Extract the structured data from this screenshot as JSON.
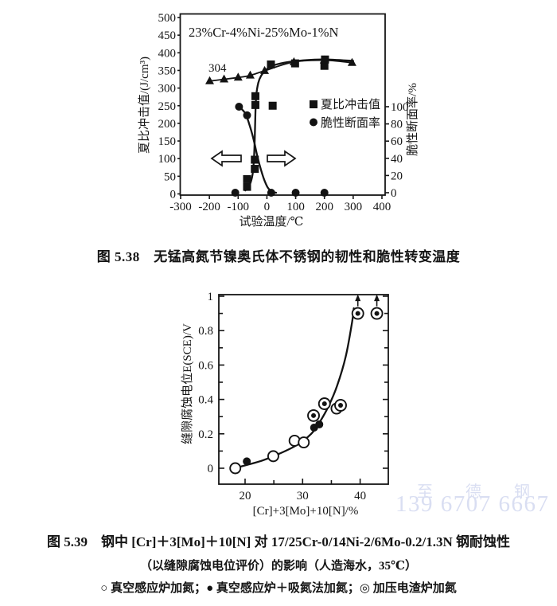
{
  "watermark": {
    "company": "至 德 钢 业",
    "phone": "139 6707 6667",
    "color": "#d9def2"
  },
  "figure38": {
    "caption": "图 5.38　无锰高氮节镍奥氏体不锈钢的韧性和脆性转变温度",
    "title_annotation": "23%Cr-4%Ni-25%Mo-1%N",
    "label_304": "304",
    "xlabel": "试验温度/℃",
    "ylabel_left": "夏比冲击值/(J/cm³)",
    "ylabel_right": "脆性断面率/%",
    "legend": {
      "impact": "夏比冲击值",
      "brittle": "脆性断面率"
    }
  },
  "figure39": {
    "caption_line1": "图 5.39　钢中 [Cr]＋3[Mo]＋10[N] 对 17/25Cr-0/14Ni-2/6Mo-0.2/1.3N 钢耐蚀性",
    "caption_line2": "（以缝隙腐蚀电位评价）的影响（人造海水，35℃）",
    "caption_line3": "○ 真空感应炉加氮；● 真空感应炉＋吸氮法加氮；◎ 加压电渣炉加氮",
    "xlabel": "[Cr]+3[Mo]+10[N]/%",
    "ylabel": "缝隙腐蚀电位E(SCE)/V"
  },
  "chart_data": [
    {
      "type": "scatter",
      "title": "无锰高氮节镍奥氏体不锈钢的韧性和脆性转变温度",
      "annotation": "23%Cr-4%Ni-25%Mo-1%N",
      "xlabel": "试验温度/℃",
      "ylabel_left": "夏比冲击值/(J/cm³)",
      "ylabel_right": "脆性断面率/%",
      "xlim": [
        -300,
        400
      ],
      "ylim_left": [
        0,
        500
      ],
      "ylim_right": [
        0,
        100
      ],
      "grid": false,
      "legend_position": "middle-right",
      "xticks": [
        -300,
        -200,
        -100,
        0,
        100,
        200,
        300,
        400
      ],
      "yticks_left": [
        0,
        50,
        100,
        150,
        200,
        250,
        300,
        350,
        400,
        450,
        500
      ],
      "yticks_right": [
        0,
        20,
        40,
        60,
        80,
        100
      ],
      "series": [
        {
          "name": "304 夏比冲击值",
          "axis": "left",
          "marker": "filled-triangle",
          "line_through_points": true,
          "points": [
            [
              -199,
              320
            ],
            [
              -149,
              325
            ],
            [
              -100,
              330
            ],
            [
              -58,
              336
            ],
            [
              -8,
              349
            ],
            [
              94,
              374
            ],
            [
              199,
              379
            ],
            [
              296,
              372
            ]
          ]
        },
        {
          "name": "23%Cr-4%Ni-25%Mo-1%N 夏比冲击值",
          "axis": "left",
          "marker": "filled-square",
          "points": [
            [
              -69,
              20
            ],
            [
              -69,
              42
            ],
            [
              -42,
              71
            ],
            [
              -42,
              97
            ],
            [
              -40,
              252
            ],
            [
              -40,
              277
            ],
            [
              20,
              250
            ],
            [
              14,
              367
            ],
            [
              98,
              370
            ],
            [
              200,
              363
            ],
            [
              202,
              381
            ]
          ],
          "curve": [
            [
              -75,
              10
            ],
            [
              -60,
              25
            ],
            [
              -50,
              55
            ],
            [
              -45,
              100
            ],
            [
              -42,
              160
            ],
            [
              -40,
              230
            ],
            [
              -37,
              280
            ],
            [
              -30,
              315
            ],
            [
              -20,
              335
            ],
            [
              -5,
              350
            ],
            [
              15,
              362
            ],
            [
              60,
              372
            ],
            [
              120,
              378
            ],
            [
              200,
              381
            ],
            [
              300,
              377
            ]
          ]
        },
        {
          "name": "23%Cr-4%Ni-25%Mo-1%N 脆性断面率",
          "axis": "right",
          "marker": "filled-circle",
          "points": [
            [
              -110,
              0
            ],
            [
              -97,
              100
            ],
            [
              -69,
              90
            ],
            [
              15,
              0
            ],
            [
              100,
              0
            ],
            [
              200,
              0
            ]
          ],
          "curve": [
            [
              -97,
              100
            ],
            [
              -75,
              92
            ],
            [
              -58,
              76
            ],
            [
              -45,
              60
            ],
            [
              -33,
              42
            ],
            [
              -20,
              26
            ],
            [
              -8,
              14
            ],
            [
              5,
              5
            ],
            [
              20,
              1
            ],
            [
              32,
              0
            ]
          ]
        }
      ]
    },
    {
      "type": "scatter",
      "xlabel": "[Cr]+3[Mo]+10[N]/%",
      "ylabel": "缝隙腐蚀电位E(SCE)/V",
      "xlim": [
        15.5,
        45
      ],
      "ylim": [
        -0.09,
        1
      ],
      "grid": false,
      "xticks": [
        20,
        30,
        40
      ],
      "xticks_minor": [
        25,
        35
      ],
      "yticks": [
        0,
        0.2,
        0.4,
        0.6,
        0.8,
        1
      ],
      "yticks_minor": [
        0.1,
        0.3,
        0.5,
        0.7,
        0.9
      ],
      "curve": [
        [
          19.3,
          0.01
        ],
        [
          23,
          0.045
        ],
        [
          26,
          0.085
        ],
        [
          29,
          0.135
        ],
        [
          31.5,
          0.2
        ],
        [
          33,
          0.27
        ],
        [
          34.5,
          0.36
        ],
        [
          36,
          0.48
        ],
        [
          37.5,
          0.65
        ],
        [
          38.6,
          0.85
        ],
        [
          38.9,
          0.93
        ]
      ],
      "series": [
        {
          "name": "真空感应炉加氮",
          "marker": "open-circle",
          "points": [
            [
              18.3,
              0.0
            ],
            [
              24.9,
              0.07
            ],
            [
              28.6,
              0.16
            ],
            [
              30.2,
              0.15
            ],
            [
              35.9,
              0.347
            ]
          ]
        },
        {
          "name": "真空感应炉＋吸氮法加氮",
          "marker": "filled-circle",
          "points": [
            [
              20.3,
              0.04
            ],
            [
              32.0,
              0.236
            ],
            [
              32.9,
              0.255
            ]
          ]
        },
        {
          "name": "加压电渣炉加氮",
          "marker": "double-circle",
          "points": [
            [
              31.9,
              0.306
            ],
            [
              33.8,
              0.375
            ],
            [
              36.6,
              0.366
            ],
            [
              39.6,
              0.9
            ],
            [
              42.9,
              0.9
            ]
          ],
          "offscale_arrows": [
            [
              39.6,
              0.9
            ],
            [
              42.9,
              0.9
            ]
          ]
        }
      ]
    }
  ],
  "render": {
    "marker_sizes": {
      "square": 10,
      "circle_r": 5,
      "open_r": 6.5,
      "double_outer": 7,
      "double_inner": 3
    },
    "charts": [
      {
        "layer": "c1g",
        "data": 0,
        "x": {
          "v0": -300,
          "p0": 227,
          "v1": 400,
          "p1": 480
        },
        "yL": {
          "v0": 0,
          "p0": 243.5,
          "v1": 500,
          "p1": 22
        },
        "yR": {
          "v0": 0,
          "p0": 242,
          "v1": 100,
          "p1": 134
        },
        "tickSets": [
          {
            "type": "x",
            "scale": "x",
            "vals": "xticks",
            "pos": 245,
            "len": 5,
            "labelPos": 264
          },
          {
            "type": "y",
            "scale": "yL",
            "vals": "yticks_left",
            "pos": 227,
            "len": -4,
            "labelPos": 221,
            "anchor": "end"
          },
          {
            "type": "y",
            "scale": "yR",
            "vals": "yticks_right",
            "pos": 484,
            "len": 5,
            "labelPos": 491,
            "anchor": "start"
          }
        ]
      },
      {
        "layer": "c2g",
        "data": 1,
        "x": {
          "v0": 20,
          "p0": 308,
          "v1": 40,
          "p1": 452.6
        },
        "yL": {
          "v0": 0,
          "p0": 588,
          "v1": 1,
          "p1": 372
        },
        "tickSets": [
          {
            "type": "x",
            "scale": "x",
            "vals": "xticks",
            "pos": 608,
            "len": -7,
            "labelPos": 627
          },
          {
            "type": "x",
            "scale": "x",
            "vals": "xticks_minor",
            "pos": 608,
            "len": -5
          },
          {
            "type": "y",
            "scale": "yL",
            "vals": "yticks",
            "pos": 275,
            "len": 7,
            "labelPos": 268,
            "anchor": "end"
          },
          {
            "type": "y",
            "scale": "yL",
            "vals": "yticks_minor",
            "pos": 275,
            "len": 5
          },
          {
            "type": "y",
            "scale": "yL",
            "vals": "yticks",
            "pos": 488,
            "len": -7
          },
          {
            "type": "y",
            "scale": "yL",
            "vals": "yticks_minor",
            "pos": 488,
            "len": -5
          }
        ]
      }
    ]
  }
}
